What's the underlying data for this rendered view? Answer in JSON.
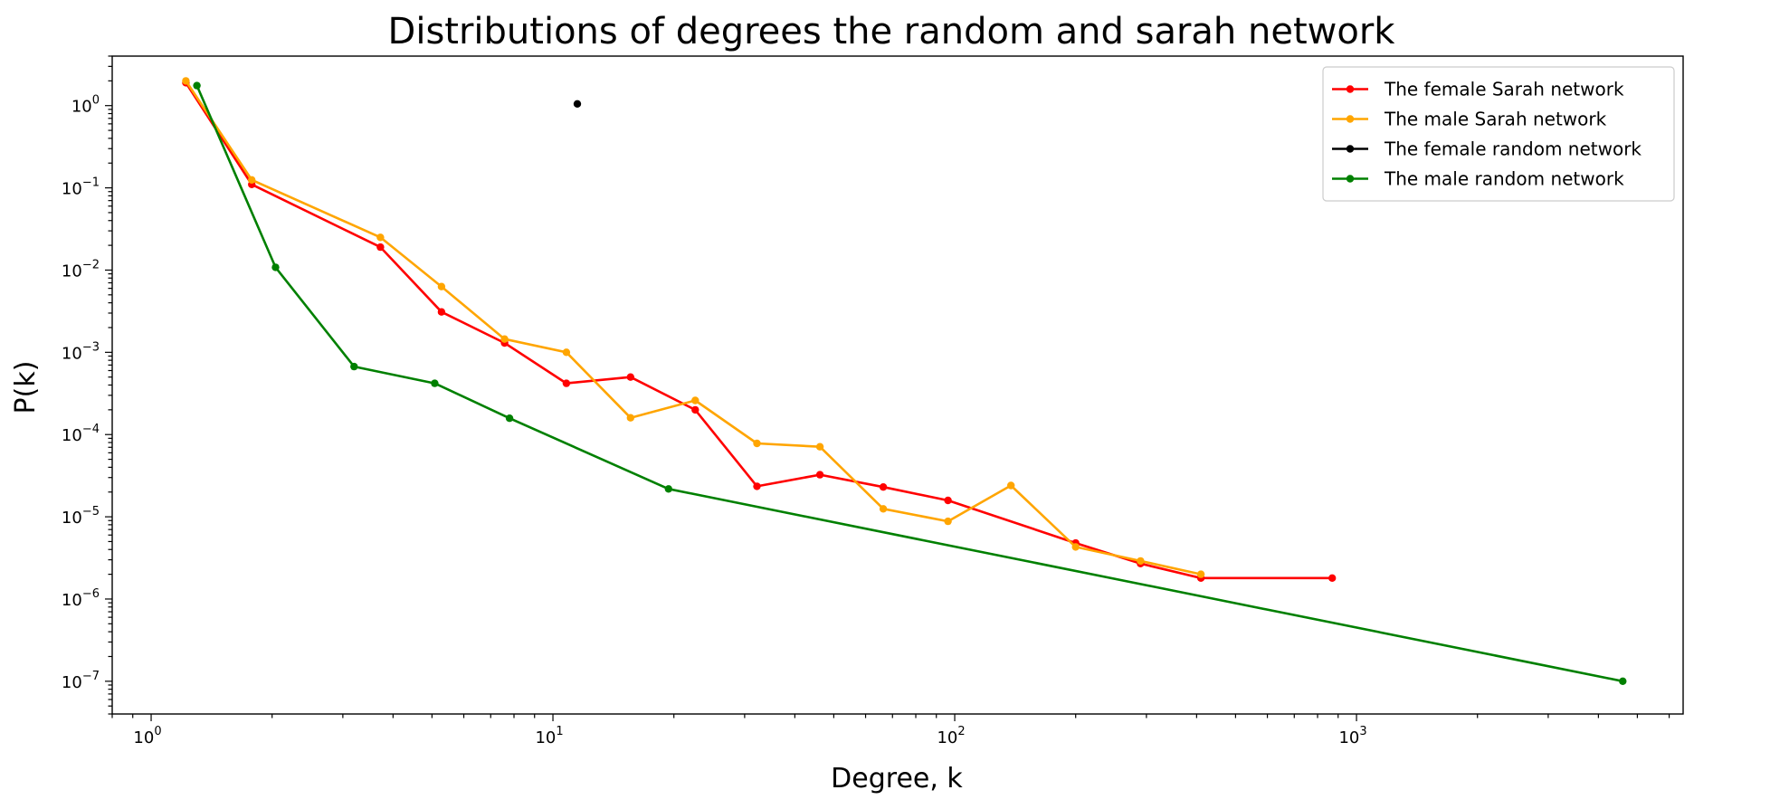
{
  "chart_data": {
    "type": "line",
    "title": "Distributions of degrees the random and sarah network",
    "xlabel": "Degree, k",
    "ylabel": "P(k)",
    "xscale": "log",
    "yscale": "log",
    "xlim": [
      0.8,
      6500
    ],
    "ylim": [
      4e-08,
      4
    ],
    "x_ticks": [
      {
        "value": 1,
        "base": "10",
        "exp": "0"
      },
      {
        "value": 10,
        "base": "10",
        "exp": "1"
      },
      {
        "value": 100,
        "base": "10",
        "exp": "2"
      },
      {
        "value": 1000,
        "base": "10",
        "exp": "3"
      }
    ],
    "y_ticks": [
      {
        "value": 1,
        "base": "10",
        "exp": "0"
      },
      {
        "value": 0.1,
        "base": "10",
        "exp": "−1"
      },
      {
        "value": 0.01,
        "base": "10",
        "exp": "−2"
      },
      {
        "value": 0.001,
        "base": "10",
        "exp": "−3"
      },
      {
        "value": 0.0001,
        "base": "10",
        "exp": "−4"
      },
      {
        "value": 1e-05,
        "base": "10",
        "exp": "−5"
      },
      {
        "value": 1e-06,
        "base": "10",
        "exp": "−6"
      },
      {
        "value": 1e-07,
        "base": "10",
        "exp": "−7"
      }
    ],
    "grid": false,
    "legend_position": "top-right",
    "series": [
      {
        "name": "The female Sarah network",
        "color": "#ff0000",
        "x": [
          1.22,
          1.78,
          3.72,
          5.28,
          7.58,
          10.8,
          15.6,
          22.6,
          32.2,
          46.2,
          66.4,
          96.2,
          200,
          290,
          410,
          870
        ],
        "y": [
          1.9,
          0.11,
          0.019,
          0.0031,
          0.0013,
          0.00042,
          0.0005,
          0.0002,
          2.35e-05,
          3.25e-05,
          2.3e-05,
          1.58e-05,
          4.8e-06,
          2.7e-06,
          1.8e-06,
          1.8e-06
        ]
      },
      {
        "name": "The male Sarah network",
        "color": "#ffa500",
        "x": [
          1.22,
          1.78,
          3.72,
          5.28,
          7.58,
          10.8,
          15.6,
          22.6,
          32.2,
          46.2,
          66.4,
          96.2,
          138,
          200,
          290,
          410
        ],
        "y": [
          2.0,
          0.125,
          0.025,
          0.0063,
          0.00145,
          0.001,
          0.00016,
          0.00026,
          7.8e-05,
          7.1e-05,
          1.25e-05,
          8.8e-06,
          2.4e-05,
          4.3e-06,
          2.9e-06,
          2e-06
        ]
      },
      {
        "name": "The female random network",
        "color": "#000000",
        "x": [
          11.5
        ],
        "y": [
          1.05
        ]
      },
      {
        "name": "The male random network",
        "color": "#008000",
        "x": [
          1.3,
          2.04,
          3.2,
          5.08,
          7.8,
          19.4,
          4600
        ],
        "y": [
          1.75,
          0.0108,
          0.00067,
          0.00042,
          0.000158,
          2.18e-05,
          1e-07
        ]
      }
    ]
  }
}
